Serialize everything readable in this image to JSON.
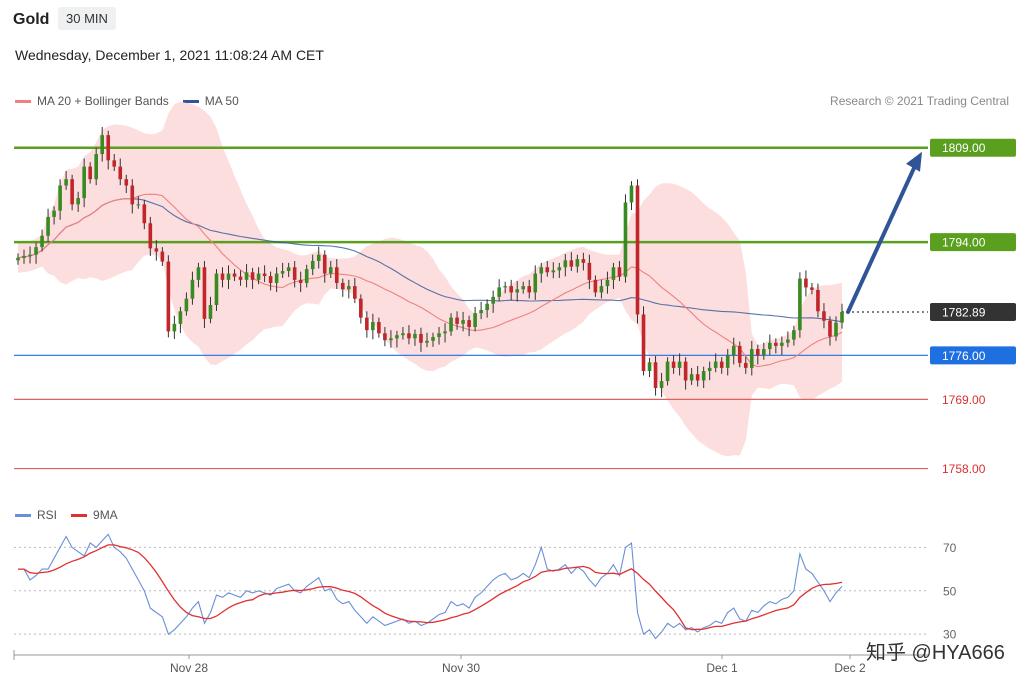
{
  "header": {
    "title": "Gold",
    "interval": "30 MIN",
    "datetime": "Wednesday, December 1, 2021 11:08:24 AM CET"
  },
  "legend": {
    "ma20_label": "MA 20 + Bollinger Bands",
    "ma50_label": "MA 50",
    "ma20_color": "#f08080",
    "ma50_color": "#2f5597"
  },
  "credit": "Research © 2021 Trading Central",
  "rsi_legend": {
    "rsi_label": "RSI",
    "ma9_label": "9MA",
    "rsi_color": "#6a8fd8",
    "ma9_color": "#e03030"
  },
  "watermark": "知乎 @HYA666",
  "chart_data": [
    {
      "type": "candlestick",
      "title": "Gold",
      "x_ticks": [
        "Nov 28",
        "Nov 30",
        "Dec 1",
        "Dec 2"
      ],
      "levels": [
        {
          "label": "1809.00",
          "value": 1809.0,
          "color": "#5aa01e",
          "style": "thick"
        },
        {
          "label": "1794.00",
          "value": 1794.0,
          "color": "#5aa01e",
          "style": "thick"
        },
        {
          "label": "1782.89",
          "value": 1782.89,
          "color": "#333333",
          "style": "current"
        },
        {
          "label": "1776.00",
          "value": 1776.0,
          "color": "#1e6fe0",
          "style": "thin"
        },
        {
          "label": "1769.00",
          "value": 1769.0,
          "color": "#e06060",
          "style": "thin"
        },
        {
          "label": "1758.00",
          "value": 1758.0,
          "color": "#e06060",
          "style": "thin"
        }
      ],
      "target_arrow": {
        "from": 1782.89,
        "to": 1809.0,
        "color": "#2f5597"
      },
      "close": [
        1791.5,
        1791.8,
        1792,
        1793.2,
        1795,
        1798,
        1799,
        1803,
        1804,
        1800,
        1801,
        1806,
        1804,
        1808,
        1811,
        1807,
        1806,
        1804,
        1803,
        1800,
        1800,
        1797,
        1793,
        1792.5,
        1790.9,
        1779.8,
        1781,
        1783,
        1785,
        1788,
        1790,
        1781.8,
        1784,
        1789,
        1788,
        1789,
        1788.5,
        1788,
        1789.2,
        1788,
        1789,
        1788.6,
        1787.5,
        1789,
        1789.4,
        1790,
        1788,
        1787.5,
        1789.7,
        1791,
        1792,
        1789,
        1790,
        1787.5,
        1786.5,
        1787,
        1785,
        1782,
        1780,
        1781.3,
        1779.5,
        1778.4,
        1778.7,
        1779.2,
        1779.5,
        1778.7,
        1779.4,
        1778,
        1778.3,
        1778.9,
        1779.5,
        1779.8,
        1782,
        1781,
        1781.6,
        1780.5,
        1782.7,
        1783.2,
        1784.2,
        1785.3,
        1786.8,
        1787,
        1786,
        1786.5,
        1787,
        1786,
        1789,
        1790,
        1789.2,
        1789.5,
        1790,
        1791.1,
        1790.1,
        1791.3,
        1790.7,
        1788,
        1786,
        1787,
        1788,
        1790,
        1788.5,
        1800.3,
        1803,
        1782.5,
        1773.5,
        1774.9,
        1770.8,
        1771.9,
        1775,
        1774,
        1775,
        1772,
        1773,
        1772,
        1773.5,
        1774,
        1775,
        1774,
        1776,
        1777.5,
        1774.8,
        1774,
        1777,
        1776,
        1777,
        1778,
        1777.5,
        1778,
        1778.5,
        1780,
        1788.2,
        1786.8,
        1786.4,
        1783,
        1781.5,
        1779,
        1781.2,
        1782.89
      ],
      "rsi": [
        60,
        60,
        55,
        57,
        60,
        60,
        65,
        70,
        75,
        70,
        68,
        66,
        72,
        70,
        73,
        76,
        70,
        68,
        65,
        60,
        55,
        50,
        42,
        40,
        38,
        30,
        32,
        35,
        38,
        42,
        45,
        35,
        40,
        48,
        47,
        49,
        48,
        47,
        50,
        49,
        50,
        49,
        48,
        51,
        52,
        53,
        50,
        49,
        52,
        54,
        56,
        50,
        51,
        46,
        44,
        45,
        41,
        38,
        35,
        38,
        36,
        34,
        35,
        36,
        37,
        35,
        36,
        34,
        35,
        37,
        39,
        40,
        45,
        43,
        44,
        42,
        47,
        49,
        52,
        55,
        57,
        58,
        55,
        56,
        58,
        56,
        62,
        70,
        60,
        59,
        60,
        62,
        58,
        61,
        59,
        55,
        52,
        56,
        58,
        62,
        57,
        70,
        72,
        40,
        30,
        32,
        28,
        31,
        35,
        33,
        35,
        32,
        33,
        31,
        33,
        34,
        36,
        35,
        40,
        42,
        37,
        36,
        41,
        40,
        43,
        45,
        44,
        46,
        47,
        50,
        67,
        60,
        58,
        54,
        50,
        45,
        49,
        52
      ],
      "rsi_levels": [
        70,
        50,
        30
      ],
      "rsi_ylim": [
        25,
        78
      ],
      "ylim": [
        1753,
        1815
      ]
    }
  ]
}
